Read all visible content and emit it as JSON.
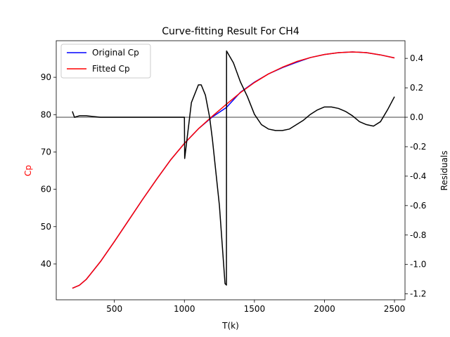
{
  "chart_data": {
    "type": "line",
    "title": "Curve-fitting Result For CH4",
    "xlabel": "T(k)",
    "ylabel_left": "Cp",
    "ylabel_right": "Residuals",
    "xlim": [
      85,
      2575
    ],
    "ylim_left": [
      30.4,
      99.8
    ],
    "ylim_right": [
      -1.24,
      0.52
    ],
    "x_ticks": [
      500,
      1000,
      1500,
      2000,
      2500
    ],
    "y_left_ticks": [
      40,
      50,
      60,
      70,
      80,
      90
    ],
    "y_right_ticks": [
      -1.2,
      -1.0,
      -0.8,
      -0.6,
      -0.4,
      -0.2,
      0.0,
      0.2,
      0.4
    ],
    "legend": {
      "position": "top-left",
      "entries": [
        "Original Cp",
        "Fitted Cp"
      ]
    },
    "colors": {
      "original": "#0000ff",
      "fitted": "#ff0000",
      "residuals": "#000000",
      "zero_line": "#808080",
      "ylabel_left": "#ff0000"
    },
    "series": [
      {
        "name": "Original Cp",
        "axis": "left",
        "x": [
          200,
          250,
          300,
          400,
          500,
          600,
          700,
          800,
          900,
          1000,
          1100,
          1200,
          1300,
          1400,
          1500,
          1600,
          1700,
          1800,
          1900,
          2000,
          2100,
          2200,
          2300,
          2400,
          2500
        ],
        "values": [
          33.5,
          34.3,
          35.9,
          40.6,
          46.0,
          51.6,
          57.2,
          62.6,
          67.8,
          72.3,
          76.2,
          79.4,
          81.9,
          86.0,
          88.7,
          90.9,
          92.6,
          94.0,
          95.3,
          96.1,
          96.6,
          96.8,
          96.6,
          96.0,
          95.2
        ]
      },
      {
        "name": "Fitted Cp",
        "axis": "left",
        "x": [
          200,
          250,
          300,
          400,
          500,
          600,
          700,
          800,
          900,
          1000,
          1100,
          1200,
          1300,
          1400,
          1500,
          1600,
          1700,
          1800,
          1900,
          2000,
          2100,
          2200,
          2300,
          2400,
          2500
        ],
        "values": [
          33.5,
          34.3,
          35.9,
          40.6,
          46.0,
          51.6,
          57.2,
          62.6,
          67.8,
          72.3,
          76.2,
          79.6,
          82.8,
          85.9,
          88.6,
          90.9,
          92.7,
          94.2,
          95.3,
          96.1,
          96.6,
          96.8,
          96.6,
          96.0,
          95.2
        ]
      },
      {
        "name": "Residuals",
        "axis": "right",
        "x": [
          200,
          215,
          250,
          300,
          400,
          500,
          600,
          700,
          800,
          900,
          990,
          999,
          1000,
          1002,
          1050,
          1100,
          1120,
          1150,
          1180,
          1200,
          1250,
          1290,
          1300,
          1301,
          1350,
          1400,
          1450,
          1500,
          1550,
          1600,
          1650,
          1700,
          1750,
          1800,
          1850,
          1900,
          1950,
          2000,
          2050,
          2100,
          2150,
          2200,
          2250,
          2300,
          2350,
          2400,
          2450,
          2500
        ],
        "values": [
          0.04,
          0.0,
          0.01,
          0.01,
          0.0,
          0.0,
          0.0,
          0.0,
          0.0,
          0.0,
          0.0,
          0.0,
          0.0,
          -0.28,
          0.1,
          0.22,
          0.22,
          0.15,
          0.0,
          -0.15,
          -0.6,
          -1.13,
          -1.14,
          0.45,
          0.37,
          0.24,
          0.14,
          0.02,
          -0.05,
          -0.08,
          -0.09,
          -0.09,
          -0.08,
          -0.05,
          -0.02,
          0.02,
          0.05,
          0.07,
          0.07,
          0.06,
          0.04,
          0.01,
          -0.03,
          -0.05,
          -0.06,
          -0.03,
          0.05,
          0.14
        ]
      }
    ]
  }
}
